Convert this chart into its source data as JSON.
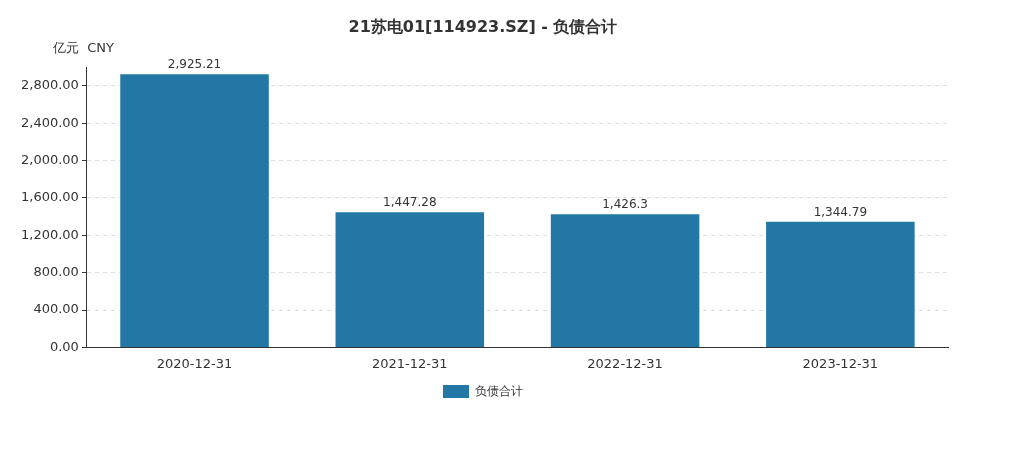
{
  "chart_data": {
    "type": "bar",
    "title": "21苏电01[114923.SZ] - 负债合计",
    "ylabel": "亿元  CNY",
    "categories": [
      "2020-12-31",
      "2021-12-31",
      "2022-12-31",
      "2023-12-31"
    ],
    "series": [
      {
        "name": "负债合计",
        "color": "#2277a4",
        "values": [
          2925.21,
          1447.28,
          1426.3,
          1344.79
        ],
        "value_labels": [
          "2,925.21",
          "1,447.28",
          "1,426.3",
          "1,344.79"
        ]
      }
    ],
    "ylim": [
      0,
      3000
    ],
    "yticks": [
      {
        "value": 0,
        "label": "0.00"
      },
      {
        "value": 400,
        "label": "400.00"
      },
      {
        "value": 800,
        "label": "800.00"
      },
      {
        "value": 1200,
        "label": "1,200.00"
      },
      {
        "value": 1600,
        "label": "1,600.00"
      },
      {
        "value": 2000,
        "label": "2,000.00"
      },
      {
        "value": 2400,
        "label": "2,400.00"
      },
      {
        "value": 2800,
        "label": "2,800.00"
      }
    ],
    "grid": "y",
    "legend": "bottom"
  }
}
